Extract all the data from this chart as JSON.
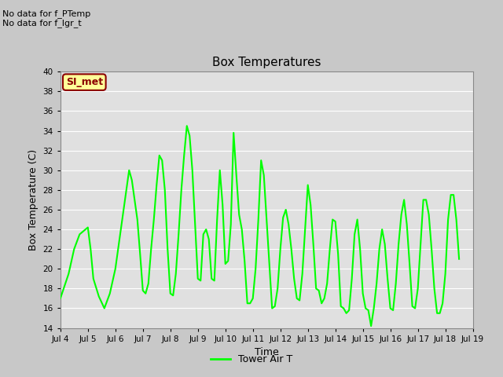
{
  "title": "Box Temperatures",
  "xlabel": "Time",
  "ylabel": "Box Temperature (C)",
  "no_data_text1": "No data for f_PTemp",
  "no_data_text2": "No data for f_lgr_t",
  "si_met_label": "SI_met",
  "legend_label": "Tower Air T",
  "line_color": "#00FF00",
  "fig_bg_color": "#C8C8C8",
  "plot_bg_color": "#E0E0E0",
  "grid_color": "#FFFFFF",
  "ylim": [
    14,
    40
  ],
  "yticks": [
    14,
    16,
    18,
    20,
    22,
    24,
    26,
    28,
    30,
    32,
    34,
    36,
    38,
    40
  ],
  "x_labels": [
    "Jul 4",
    "Jul 5",
    "Jul 6",
    "Jul 7",
    "Jul 8",
    "Jul 9",
    "Jul 10",
    "Jul 11",
    "Jul 12",
    "Jul 13",
    "Jul 14",
    "Jul 15",
    "Jul 16",
    "Jul 17",
    "Jul 18",
    "Jul 19"
  ],
  "x_values": [
    4,
    5,
    6,
    7,
    8,
    9,
    10,
    11,
    12,
    13,
    14,
    15,
    16,
    17,
    18,
    19
  ],
  "tower_air_t_x": [
    4.0,
    4.3,
    4.5,
    4.7,
    5.0,
    5.1,
    5.2,
    5.4,
    5.6,
    5.8,
    6.0,
    6.2,
    6.4,
    6.5,
    6.6,
    6.8,
    6.9,
    7.0,
    7.1,
    7.2,
    7.3,
    7.4,
    7.5,
    7.6,
    7.7,
    7.8,
    7.9,
    8.0,
    8.1,
    8.2,
    8.3,
    8.4,
    8.5,
    8.6,
    8.7,
    8.8,
    8.9,
    9.0,
    9.1,
    9.2,
    9.3,
    9.4,
    9.5,
    9.6,
    9.7,
    9.8,
    9.9,
    10.0,
    10.1,
    10.2,
    10.3,
    10.4,
    10.5,
    10.6,
    10.7,
    10.8,
    10.9,
    11.0,
    11.1,
    11.2,
    11.3,
    11.4,
    11.5,
    11.6,
    11.7,
    11.8,
    11.9,
    12.0,
    12.1,
    12.2,
    12.3,
    12.4,
    12.5,
    12.6,
    12.7,
    12.8,
    12.9,
    13.0,
    13.1,
    13.2,
    13.3,
    13.4,
    13.5,
    13.6,
    13.7,
    13.8,
    13.9,
    14.0,
    14.1,
    14.2,
    14.3,
    14.4,
    14.5,
    14.6,
    14.7,
    14.8,
    14.9,
    15.0,
    15.1,
    15.2,
    15.3,
    15.4,
    15.5,
    15.6,
    15.7,
    15.8,
    15.9,
    16.0,
    16.1,
    16.2,
    16.3,
    16.4,
    16.5,
    16.6,
    16.7,
    16.8,
    16.9,
    17.0,
    17.1,
    17.2,
    17.3,
    17.4,
    17.5,
    17.6,
    17.7,
    17.8,
    17.9,
    18.0,
    18.1,
    18.2,
    18.3,
    18.4,
    18.5
  ],
  "tower_air_t_y": [
    17.0,
    19.5,
    22.0,
    23.5,
    24.2,
    22.0,
    19.0,
    17.2,
    16.0,
    17.5,
    20.0,
    24.0,
    28.0,
    30.0,
    29.0,
    25.0,
    21.5,
    17.8,
    17.5,
    18.5,
    22.0,
    25.0,
    28.5,
    31.5,
    31.0,
    28.0,
    22.0,
    17.5,
    17.3,
    19.5,
    23.5,
    28.0,
    31.5,
    34.5,
    33.5,
    30.0,
    24.5,
    19.0,
    18.8,
    23.5,
    24.0,
    23.0,
    19.0,
    18.8,
    25.0,
    30.0,
    26.5,
    20.5,
    20.8,
    24.5,
    33.8,
    29.5,
    25.5,
    24.0,
    20.8,
    16.5,
    16.5,
    17.0,
    20.0,
    25.0,
    31.0,
    29.5,
    25.0,
    20.5,
    16.0,
    16.2,
    18.0,
    22.0,
    25.2,
    26.0,
    24.5,
    22.0,
    19.0,
    17.0,
    16.8,
    19.5,
    24.0,
    28.5,
    26.5,
    22.5,
    18.0,
    17.8,
    16.5,
    17.0,
    18.5,
    22.0,
    25.0,
    24.8,
    21.5,
    16.2,
    16.0,
    15.5,
    15.8,
    19.0,
    23.5,
    25.0,
    22.0,
    17.5,
    16.0,
    15.8,
    14.2,
    16.0,
    18.5,
    22.0,
    24.0,
    22.5,
    19.0,
    16.0,
    15.8,
    18.5,
    22.5,
    25.5,
    27.0,
    24.5,
    20.5,
    16.2,
    16.0,
    18.0,
    22.5,
    27.0,
    27.0,
    25.5,
    22.0,
    18.0,
    15.5,
    15.5,
    16.5,
    19.5,
    25.0,
    27.5,
    27.5,
    25.0,
    21.0
  ]
}
